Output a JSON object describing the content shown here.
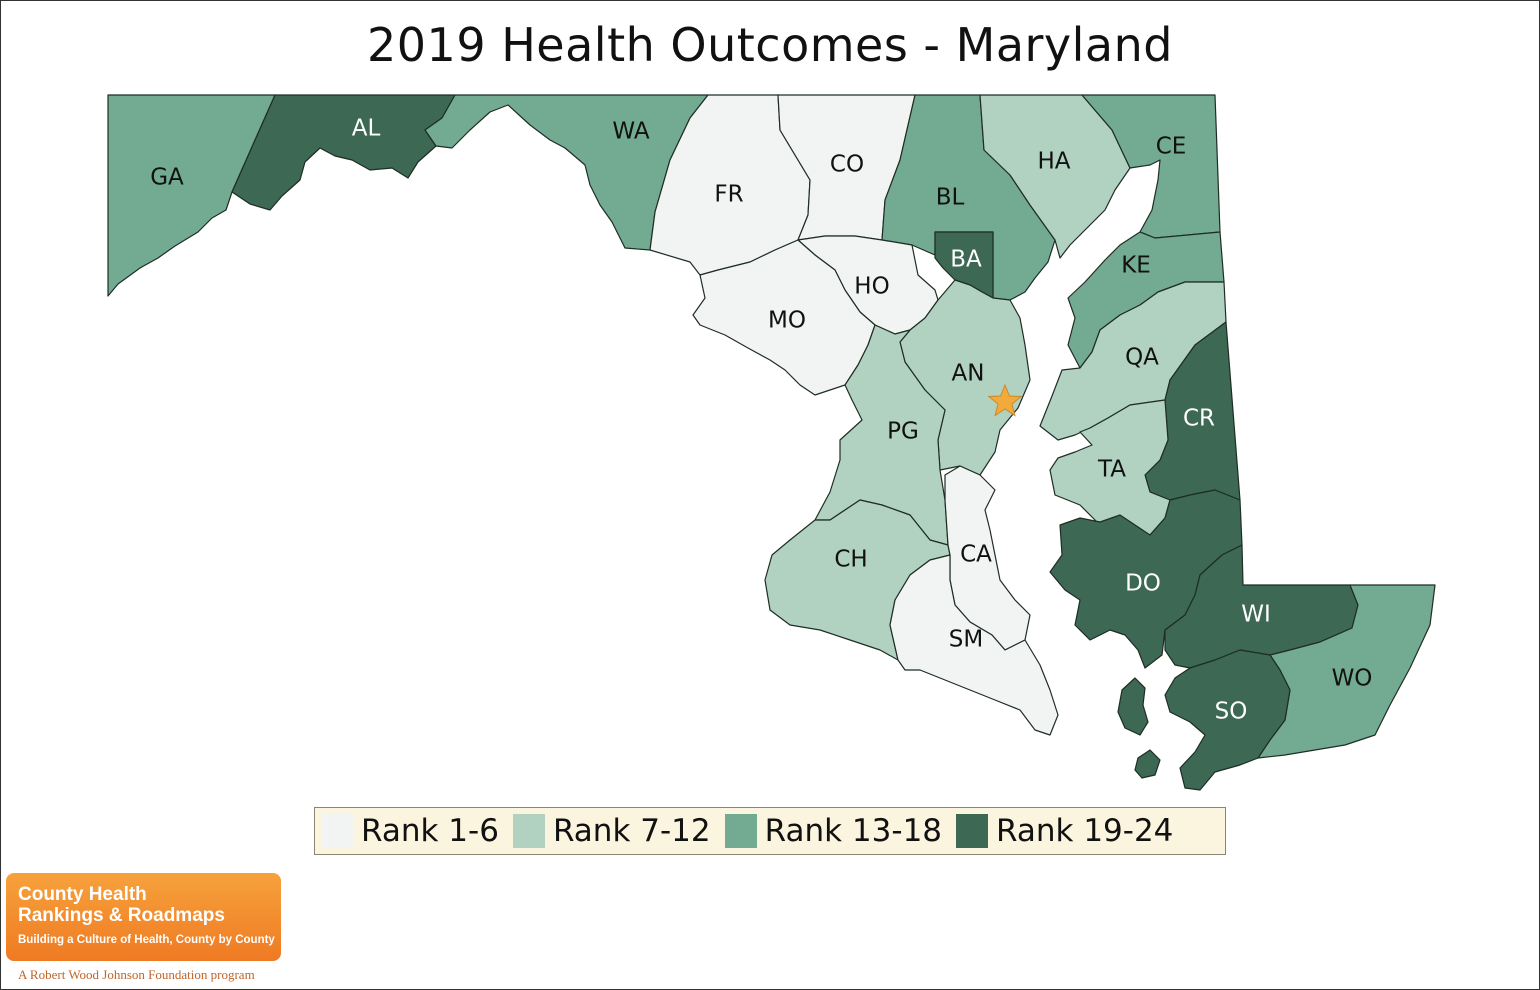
{
  "title": "2019 Health Outcomes - Maryland",
  "colors": {
    "rank_1_6": "#f1f4f2",
    "rank_7_12": "#b1d1c1",
    "rank_13_18": "#72aa92",
    "rank_19_24": "#3c6854",
    "water": "#ffffff",
    "capital_star": "#f3aa3c"
  },
  "legend": [
    {
      "label": "Rank 1-6",
      "color": "#f1f4f2"
    },
    {
      "label": "Rank 7-12",
      "color": "#b1d1c1"
    },
    {
      "label": "Rank 13-18",
      "color": "#72aa92"
    },
    {
      "label": "Rank 19-24",
      "color": "#3c6854"
    }
  ],
  "counties": [
    {
      "abbr": "GA",
      "rank_group": "Rank 13-18"
    },
    {
      "abbr": "AL",
      "rank_group": "Rank 19-24"
    },
    {
      "abbr": "WA",
      "rank_group": "Rank 13-18"
    },
    {
      "abbr": "FR",
      "rank_group": "Rank 1-6"
    },
    {
      "abbr": "CO",
      "rank_group": "Rank 1-6"
    },
    {
      "abbr": "BL",
      "rank_group": "Rank 13-18"
    },
    {
      "abbr": "BA",
      "rank_group": "Rank 19-24"
    },
    {
      "abbr": "HA",
      "rank_group": "Rank 7-12"
    },
    {
      "abbr": "CE",
      "rank_group": "Rank 13-18"
    },
    {
      "abbr": "KE",
      "rank_group": "Rank 13-18"
    },
    {
      "abbr": "HO",
      "rank_group": "Rank 1-6"
    },
    {
      "abbr": "MO",
      "rank_group": "Rank 1-6"
    },
    {
      "abbr": "AN",
      "rank_group": "Rank 7-12"
    },
    {
      "abbr": "QA",
      "rank_group": "Rank 7-12"
    },
    {
      "abbr": "CR",
      "rank_group": "Rank 19-24"
    },
    {
      "abbr": "PG",
      "rank_group": "Rank 7-12"
    },
    {
      "abbr": "TA",
      "rank_group": "Rank 7-12"
    },
    {
      "abbr": "CH",
      "rank_group": "Rank 7-12"
    },
    {
      "abbr": "CA",
      "rank_group": "Rank 1-6"
    },
    {
      "abbr": "DO",
      "rank_group": "Rank 19-24"
    },
    {
      "abbr": "WI",
      "rank_group": "Rank 19-24"
    },
    {
      "abbr": "SM",
      "rank_group": "Rank 1-6"
    },
    {
      "abbr": "WO",
      "rank_group": "Rank 13-18"
    },
    {
      "abbr": "SO",
      "rank_group": "Rank 19-24"
    }
  ],
  "capital_marker": "star",
  "logo": {
    "line1": "County Health",
    "line2": "Rankings & Roadmaps",
    "tagline": "Building a Culture of Health, County by County",
    "footer": "A Robert Wood Johnson Foundation program"
  }
}
